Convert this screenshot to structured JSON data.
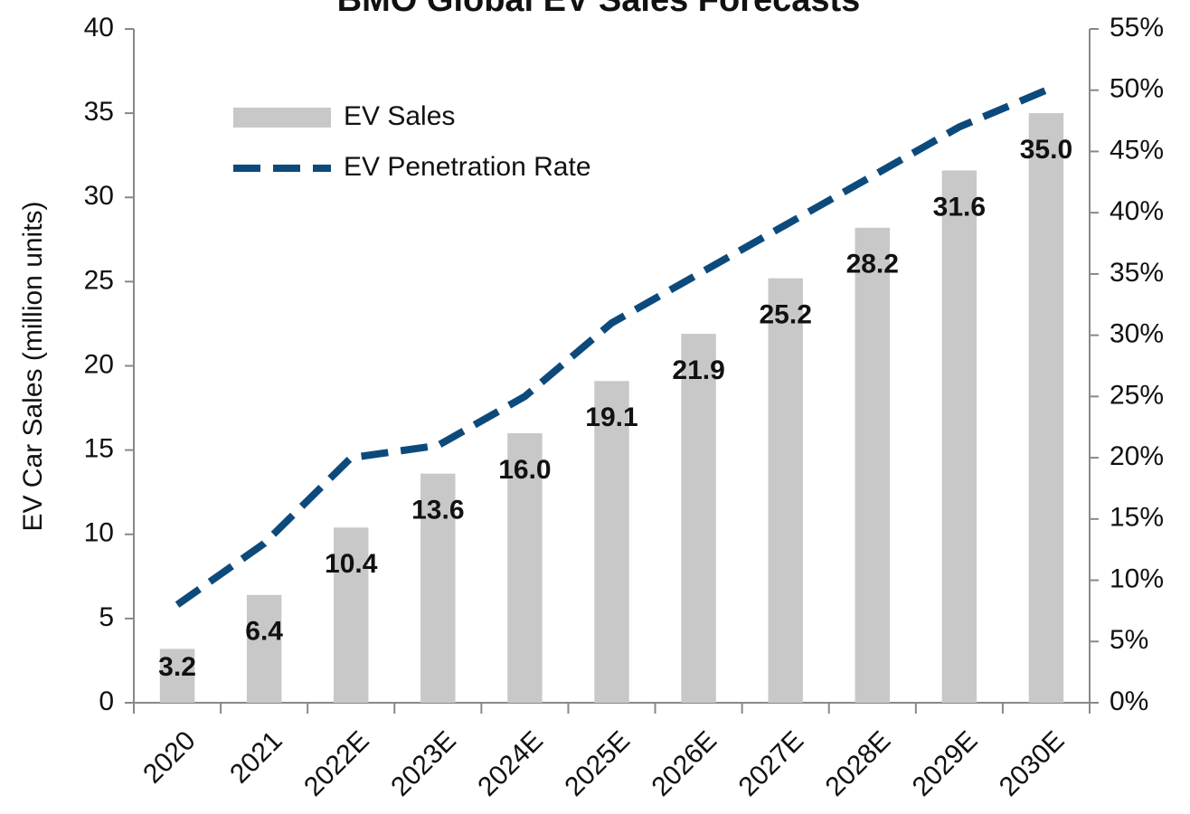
{
  "chart_data": {
    "type": "bar",
    "title": "BMO Global EV Sales Forecasts",
    "y_label": "EV Car Sales (million units)",
    "categories": [
      "2020",
      "2021",
      "2022E",
      "2023E",
      "2024E",
      "2025E",
      "2026E",
      "2027E",
      "2028E",
      "2029E",
      "2030E"
    ],
    "series": [
      {
        "name": "EV Sales",
        "color": "#c8c8c8",
        "values": [
          3.2,
          6.4,
          10.4,
          13.6,
          16.0,
          19.1,
          21.9,
          25.2,
          28.2,
          31.6,
          35.0
        ],
        "value_labels": [
          "3.2",
          "6.4",
          "10.4",
          "13.6",
          "16.0",
          "19.1",
          "21.9",
          "25.2",
          "28.2",
          "31.6",
          "35.0"
        ]
      },
      {
        "name": "EV Penetration Rate",
        "type": "line",
        "axis": "y2",
        "color": "#0d4a7c",
        "values": [
          8,
          13,
          20,
          21,
          25,
          31,
          35,
          39,
          43,
          47,
          50
        ]
      }
    ],
    "ylim": [
      0,
      40
    ],
    "yticks": [
      0,
      5,
      10,
      15,
      20,
      25,
      30,
      35,
      40
    ],
    "y2lim": [
      0,
      55
    ],
    "y2ticks": [
      {
        "value": 0,
        "label": "0%"
      },
      {
        "value": 5,
        "label": "5%"
      },
      {
        "value": 10,
        "label": "10%"
      },
      {
        "value": 15,
        "label": "15%"
      },
      {
        "value": 20,
        "label": "20%"
      },
      {
        "value": 25,
        "label": "25%"
      },
      {
        "value": 30,
        "label": "30%"
      },
      {
        "value": 35,
        "label": "35%"
      },
      {
        "value": 40,
        "label": "40%"
      },
      {
        "value": 45,
        "label": "45%"
      },
      {
        "value": 50,
        "label": "50%"
      },
      {
        "value": 55,
        "label": "55%"
      }
    ],
    "legend": "upper left"
  }
}
